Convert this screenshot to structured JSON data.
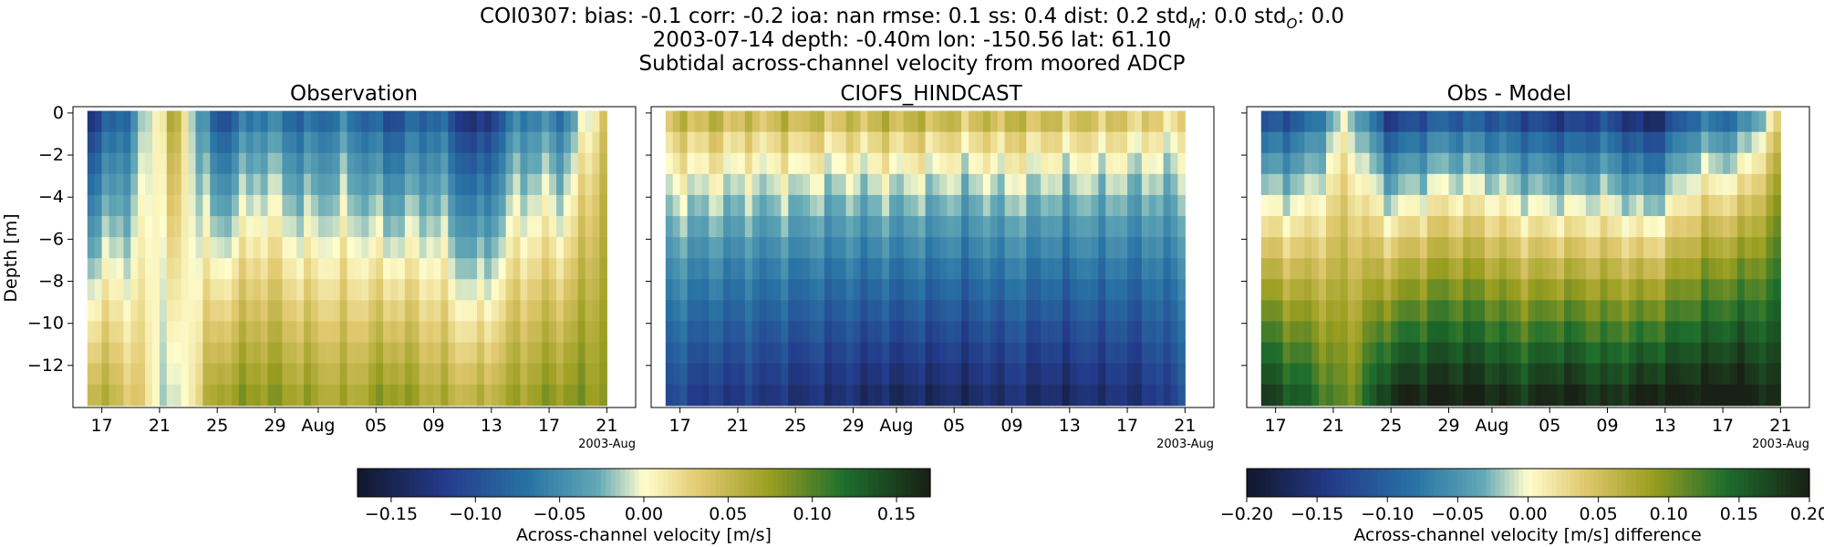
{
  "header": {
    "stats_main": "COI0307: bias: -0.1  corr: -0.2  ioa: nan  rmse: 0.1  ss: 0.4  dist: 0.2  std",
    "std_m_sub": "M",
    "stats_mid": ": 0.0  std",
    "std_o_sub": "O",
    "stats_end": ": 0.0",
    "line2": "2003-07-14 depth: -0.40m lon: -150.56 lat: 61.10",
    "line3": "Subtidal across-channel velocity from moored ADCP"
  },
  "panels": [
    {
      "title": "Observation"
    },
    {
      "title": "CIOFS_HINDCAST"
    },
    {
      "title": "Obs - Model"
    }
  ],
  "colorbars": [
    {
      "label": "Across-channel velocity [m/s]",
      "ticks": [
        "−0.15",
        "−0.10",
        "−0.05",
        "0.00",
        "0.05",
        "0.10",
        "0.15"
      ],
      "vmin": -0.17,
      "vmax": 0.17
    },
    {
      "label": "Across-channel velocity [m/s] difference",
      "ticks": [
        "−0.20",
        "−0.15",
        "−0.10",
        "−0.05",
        "0.00",
        "0.05",
        "0.10",
        "0.15",
        "0.20"
      ],
      "vmin": -0.2,
      "vmax": 0.2
    }
  ],
  "chart_data": [
    {
      "type": "heatmap",
      "title": "Observation",
      "xlabel": "",
      "ylabel": "Depth [m]",
      "x_tick_labels": [
        "17",
        "21",
        "25",
        "29",
        "Aug",
        "05",
        "09",
        "13",
        "17",
        "21"
      ],
      "x_offset_label": "2003-Aug",
      "x_range": [
        "2003-07-15",
        "2003-08-23"
      ],
      "y_ticks": [
        0,
        -2,
        -4,
        -6,
        -8,
        -10,
        -12
      ],
      "y_tick_labels": [
        "0",
        "−2",
        "−4",
        "−6",
        "−8",
        "−10",
        "−12"
      ],
      "ylim": [
        -14,
        0.3
      ],
      "colormap": "delta",
      "value_range": [
        -0.17,
        0.17
      ],
      "depth_levels": [
        -0.4,
        -1.4,
        -2.4,
        -3.4,
        -4.4,
        -5.4,
        -6.4,
        -7.4,
        -8.4,
        -9.4,
        -10.4,
        -11.4,
        -12.4,
        -13.4
      ],
      "time": [
        "2003-07-16",
        "2003-07-19",
        "2003-07-22",
        "2003-07-25",
        "2003-07-28",
        "2003-07-31",
        "2003-08-03",
        "2003-08-06",
        "2003-08-09",
        "2003-08-12",
        "2003-08-15",
        "2003-08-18",
        "2003-08-21"
      ],
      "surface_velocity": [
        -0.12,
        -0.06,
        0.06,
        -0.1,
        -0.05,
        -0.08,
        -0.06,
        -0.1,
        -0.07,
        -0.14,
        -0.05,
        -0.06,
        0.05
      ],
      "bottom_velocity": [
        0.06,
        0.04,
        -0.02,
        0.07,
        0.08,
        0.07,
        0.06,
        0.08,
        0.06,
        0.05,
        0.07,
        0.08,
        0.08
      ]
    },
    {
      "type": "heatmap",
      "title": "CIOFS_HINDCAST",
      "xlabel": "",
      "ylabel": "",
      "x_tick_labels": [
        "17",
        "21",
        "25",
        "29",
        "Aug",
        "05",
        "09",
        "13",
        "17",
        "21"
      ],
      "x_offset_label": "2003-Aug",
      "x_range": [
        "2003-07-15",
        "2003-08-23"
      ],
      "ylim": [
        -14,
        0.3
      ],
      "colormap": "delta",
      "value_range": [
        -0.17,
        0.17
      ],
      "depth_levels": [
        -0.4,
        -1.4,
        -2.4,
        -3.4,
        -4.4,
        -5.4,
        -6.4,
        -7.4,
        -8.4,
        -9.4,
        -10.4,
        -11.4,
        -12.4,
        -13.4
      ],
      "time": [
        "2003-07-16",
        "2003-07-19",
        "2003-07-22",
        "2003-07-25",
        "2003-07-28",
        "2003-07-31",
        "2003-08-03",
        "2003-08-06",
        "2003-08-09",
        "2003-08-12",
        "2003-08-15",
        "2003-08-18",
        "2003-08-21"
      ],
      "surface_velocity": [
        0.04,
        0.05,
        0.04,
        0.05,
        0.04,
        0.05,
        0.05,
        0.04,
        0.05,
        0.04,
        0.04,
        0.03,
        0.02
      ],
      "bottom_velocity": [
        -0.1,
        -0.12,
        -0.12,
        -0.13,
        -0.13,
        -0.14,
        -0.14,
        -0.14,
        -0.13,
        -0.14,
        -0.13,
        -0.13,
        -0.1
      ]
    },
    {
      "type": "heatmap",
      "title": "Obs - Model",
      "xlabel": "",
      "ylabel": "",
      "x_tick_labels": [
        "17",
        "21",
        "25",
        "29",
        "Aug",
        "05",
        "09",
        "13",
        "17",
        "21"
      ],
      "x_offset_label": "2003-Aug",
      "x_range": [
        "2003-07-15",
        "2003-08-23"
      ],
      "ylim": [
        -14,
        0.3
      ],
      "colormap": "delta",
      "value_range": [
        -0.2,
        0.2
      ],
      "depth_levels": [
        -0.4,
        -1.4,
        -2.4,
        -3.4,
        -4.4,
        -5.4,
        -6.4,
        -7.4,
        -8.4,
        -9.4,
        -10.4,
        -11.4,
        -12.4,
        -13.4
      ],
      "time": [
        "2003-07-16",
        "2003-07-19",
        "2003-07-22",
        "2003-07-25",
        "2003-07-28",
        "2003-07-31",
        "2003-08-03",
        "2003-08-06",
        "2003-08-09",
        "2003-08-12",
        "2003-08-15",
        "2003-08-18",
        "2003-08-21"
      ],
      "surface_velocity": [
        -0.12,
        -0.1,
        0.0,
        -0.14,
        -0.1,
        -0.1,
        -0.12,
        -0.14,
        -0.12,
        -0.17,
        -0.08,
        -0.08,
        0.03
      ],
      "bottom_velocity": [
        0.18,
        0.15,
        0.1,
        0.19,
        0.2,
        0.2,
        0.18,
        0.2,
        0.18,
        0.2,
        0.2,
        0.21,
        0.18
      ]
    }
  ]
}
